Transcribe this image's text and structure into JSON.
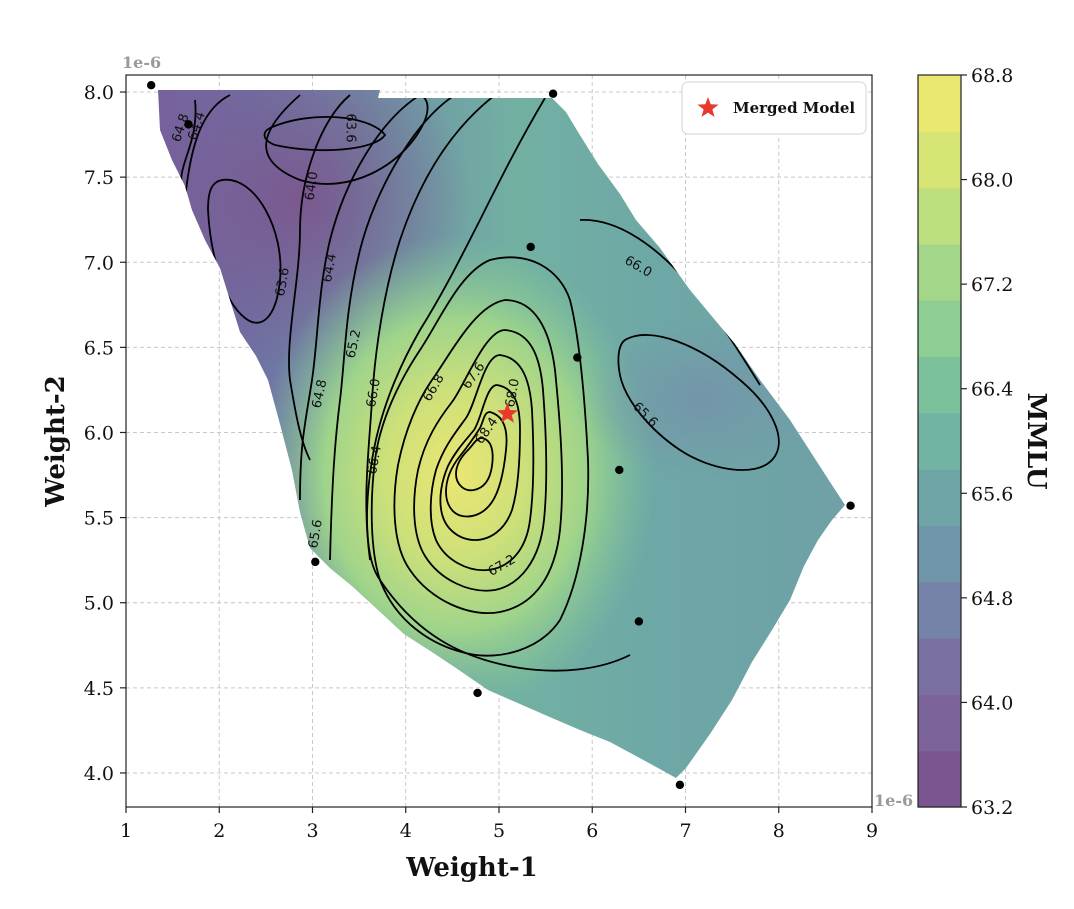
{
  "chart_data": {
    "type": "contour",
    "title": "",
    "xlabel": "Weight-1",
    "ylabel": "Weight-2",
    "x_offset_label": "1e-6",
    "y_offset_label": "1e-6",
    "xlim": [
      1,
      9
    ],
    "ylim": [
      3.8,
      8.1
    ],
    "x_ticks": [
      "1",
      "2",
      "3",
      "4",
      "5",
      "6",
      "7",
      "8",
      "9"
    ],
    "y_ticks": [
      "4.0",
      "4.5",
      "5.0",
      "5.5",
      "6.0",
      "6.5",
      "7.0",
      "7.5",
      "8.0"
    ],
    "grid": true,
    "colorbar": {
      "label": "MMLU",
      "range": [
        63.2,
        68.8
      ],
      "ticks": [
        "63.2",
        "64.0",
        "64.8",
        "65.6",
        "66.4",
        "67.2",
        "68.0",
        "68.8"
      ],
      "colormap": "viridis",
      "alpha": 0.7
    },
    "contour_labels": [
      "64.8",
      "64.4",
      "63.6",
      "64.0",
      "63.6",
      "64.4",
      "65.2",
      "64.8",
      "65.6",
      "66.0",
      "66.4",
      "66.8",
      "67.6",
      "68.0",
      "68.4",
      "67.2",
      "66.0",
      "65.6"
    ],
    "points": [
      {
        "x": 1.27,
        "y": 8.04
      },
      {
        "x": 1.67,
        "y": 7.81
      },
      {
        "x": 5.58,
        "y": 7.99
      },
      {
        "x": 5.34,
        "y": 7.09
      },
      {
        "x": 5.84,
        "y": 6.44
      },
      {
        "x": 6.29,
        "y": 5.78
      },
      {
        "x": 8.77,
        "y": 5.57
      },
      {
        "x": 3.03,
        "y": 5.24
      },
      {
        "x": 6.5,
        "y": 4.89
      },
      {
        "x": 4.77,
        "y": 4.47
      },
      {
        "x": 6.94,
        "y": 3.93
      }
    ],
    "merged_model": {
      "x": 5.09,
      "y": 6.11
    },
    "legend": {
      "label": "Merged Model",
      "placement": "top-right"
    }
  }
}
